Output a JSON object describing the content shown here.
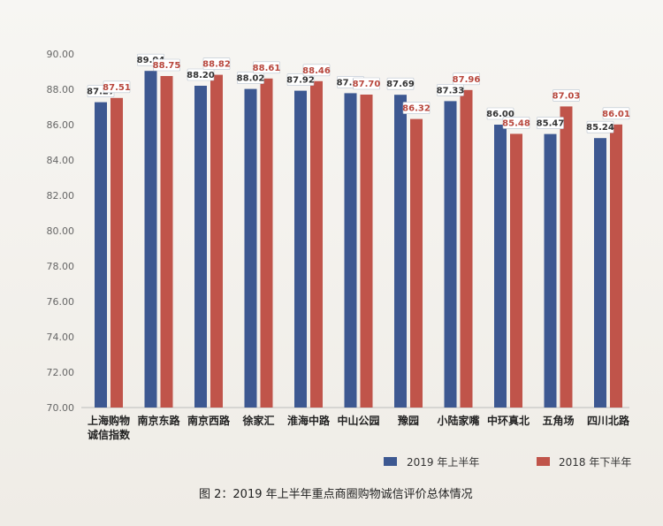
{
  "chart_data": {
    "type": "bar",
    "categories": [
      [
        "上海购物",
        "诚信指数"
      ],
      [
        "南京东路"
      ],
      [
        "南京西路"
      ],
      [
        "徐家汇"
      ],
      [
        "淮海中路"
      ],
      [
        "中山公园"
      ],
      [
        "豫园"
      ],
      [
        "小陆家嘴"
      ],
      [
        "中环真北"
      ],
      [
        "五角场"
      ],
      [
        "四川北路"
      ]
    ],
    "series": [
      {
        "name": "2019 年上半年",
        "color": "#3d5891",
        "values": [
          87.27,
          89.04,
          88.2,
          88.02,
          87.92,
          87.78,
          87.69,
          87.33,
          86.0,
          85.47,
          85.24
        ]
      },
      {
        "name": "2018 年下半年",
        "color": "#c0544a",
        "values": [
          87.51,
          88.75,
          88.82,
          88.61,
          88.46,
          87.7,
          86.32,
          87.96,
          85.48,
          87.03,
          86.01
        ]
      }
    ],
    "value_labels": [
      [
        "87.27",
        "89.04",
        "88.20",
        "88.02",
        "87.92",
        "87.78",
        "87.69",
        "87.33",
        "86.00",
        "85.47",
        "85.24"
      ],
      [
        "87.51",
        "88.75",
        "88.82",
        "88.61",
        "88.46",
        "87.70",
        "86.32",
        "87.96",
        "85.48",
        "87.03",
        "86.01"
      ]
    ],
    "yticks": [
      "70.00",
      "72.00",
      "74.00",
      "76.00",
      "78.00",
      "80.00",
      "82.00",
      "84.00",
      "86.00",
      "88.00",
      "90.00"
    ],
    "ylim": [
      70,
      90
    ],
    "grid": false,
    "legend_position": "bottom-right"
  },
  "caption": "图 2：2019 年上半年重点商圈购物诚信评价总体情况"
}
